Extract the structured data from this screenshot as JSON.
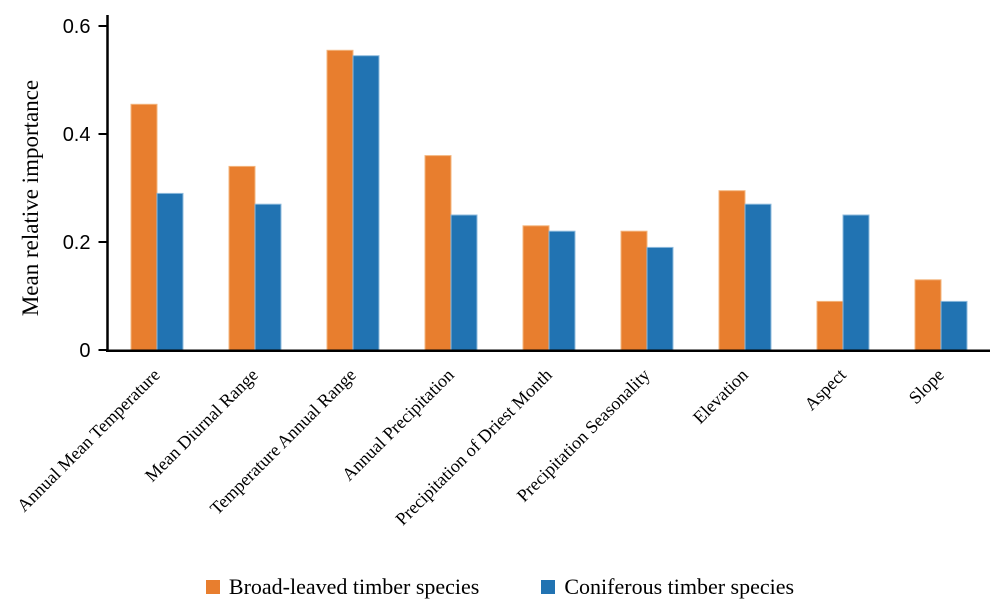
{
  "chart_data": {
    "type": "bar",
    "title": "",
    "xlabel": "",
    "ylabel": "Mean relative importance",
    "ylim": [
      0,
      0.6
    ],
    "yticks": [
      0,
      0.2,
      0.4,
      0.6
    ],
    "ytick_labels": [
      "0",
      "0.2",
      "0.4",
      "0.6"
    ],
    "grid": false,
    "legend_position": "bottom-center",
    "axis_color": "#000000",
    "background_color": "#ffffff",
    "categories": [
      "Annual Mean Temperature",
      "Mean Diurnal Range",
      "Temperature Annual Range",
      "Annual Precipitation",
      "Precipitation of Driest Month",
      "Precipitation Seasonality",
      "Elevation",
      "Aspect",
      "Slope"
    ],
    "series": [
      {
        "name": "Broad-leaved timber species",
        "color": "#E87E2E",
        "edge_color": "#F3B57E",
        "values": [
          0.455,
          0.34,
          0.555,
          0.36,
          0.23,
          0.22,
          0.295,
          0.09,
          0.13
        ]
      },
      {
        "name": "Coniferous timber species",
        "color": "#2173B2",
        "edge_color": "#8FBBDC",
        "values": [
          0.29,
          0.27,
          0.545,
          0.25,
          0.22,
          0.19,
          0.27,
          0.25,
          0.09
        ]
      }
    ]
  }
}
